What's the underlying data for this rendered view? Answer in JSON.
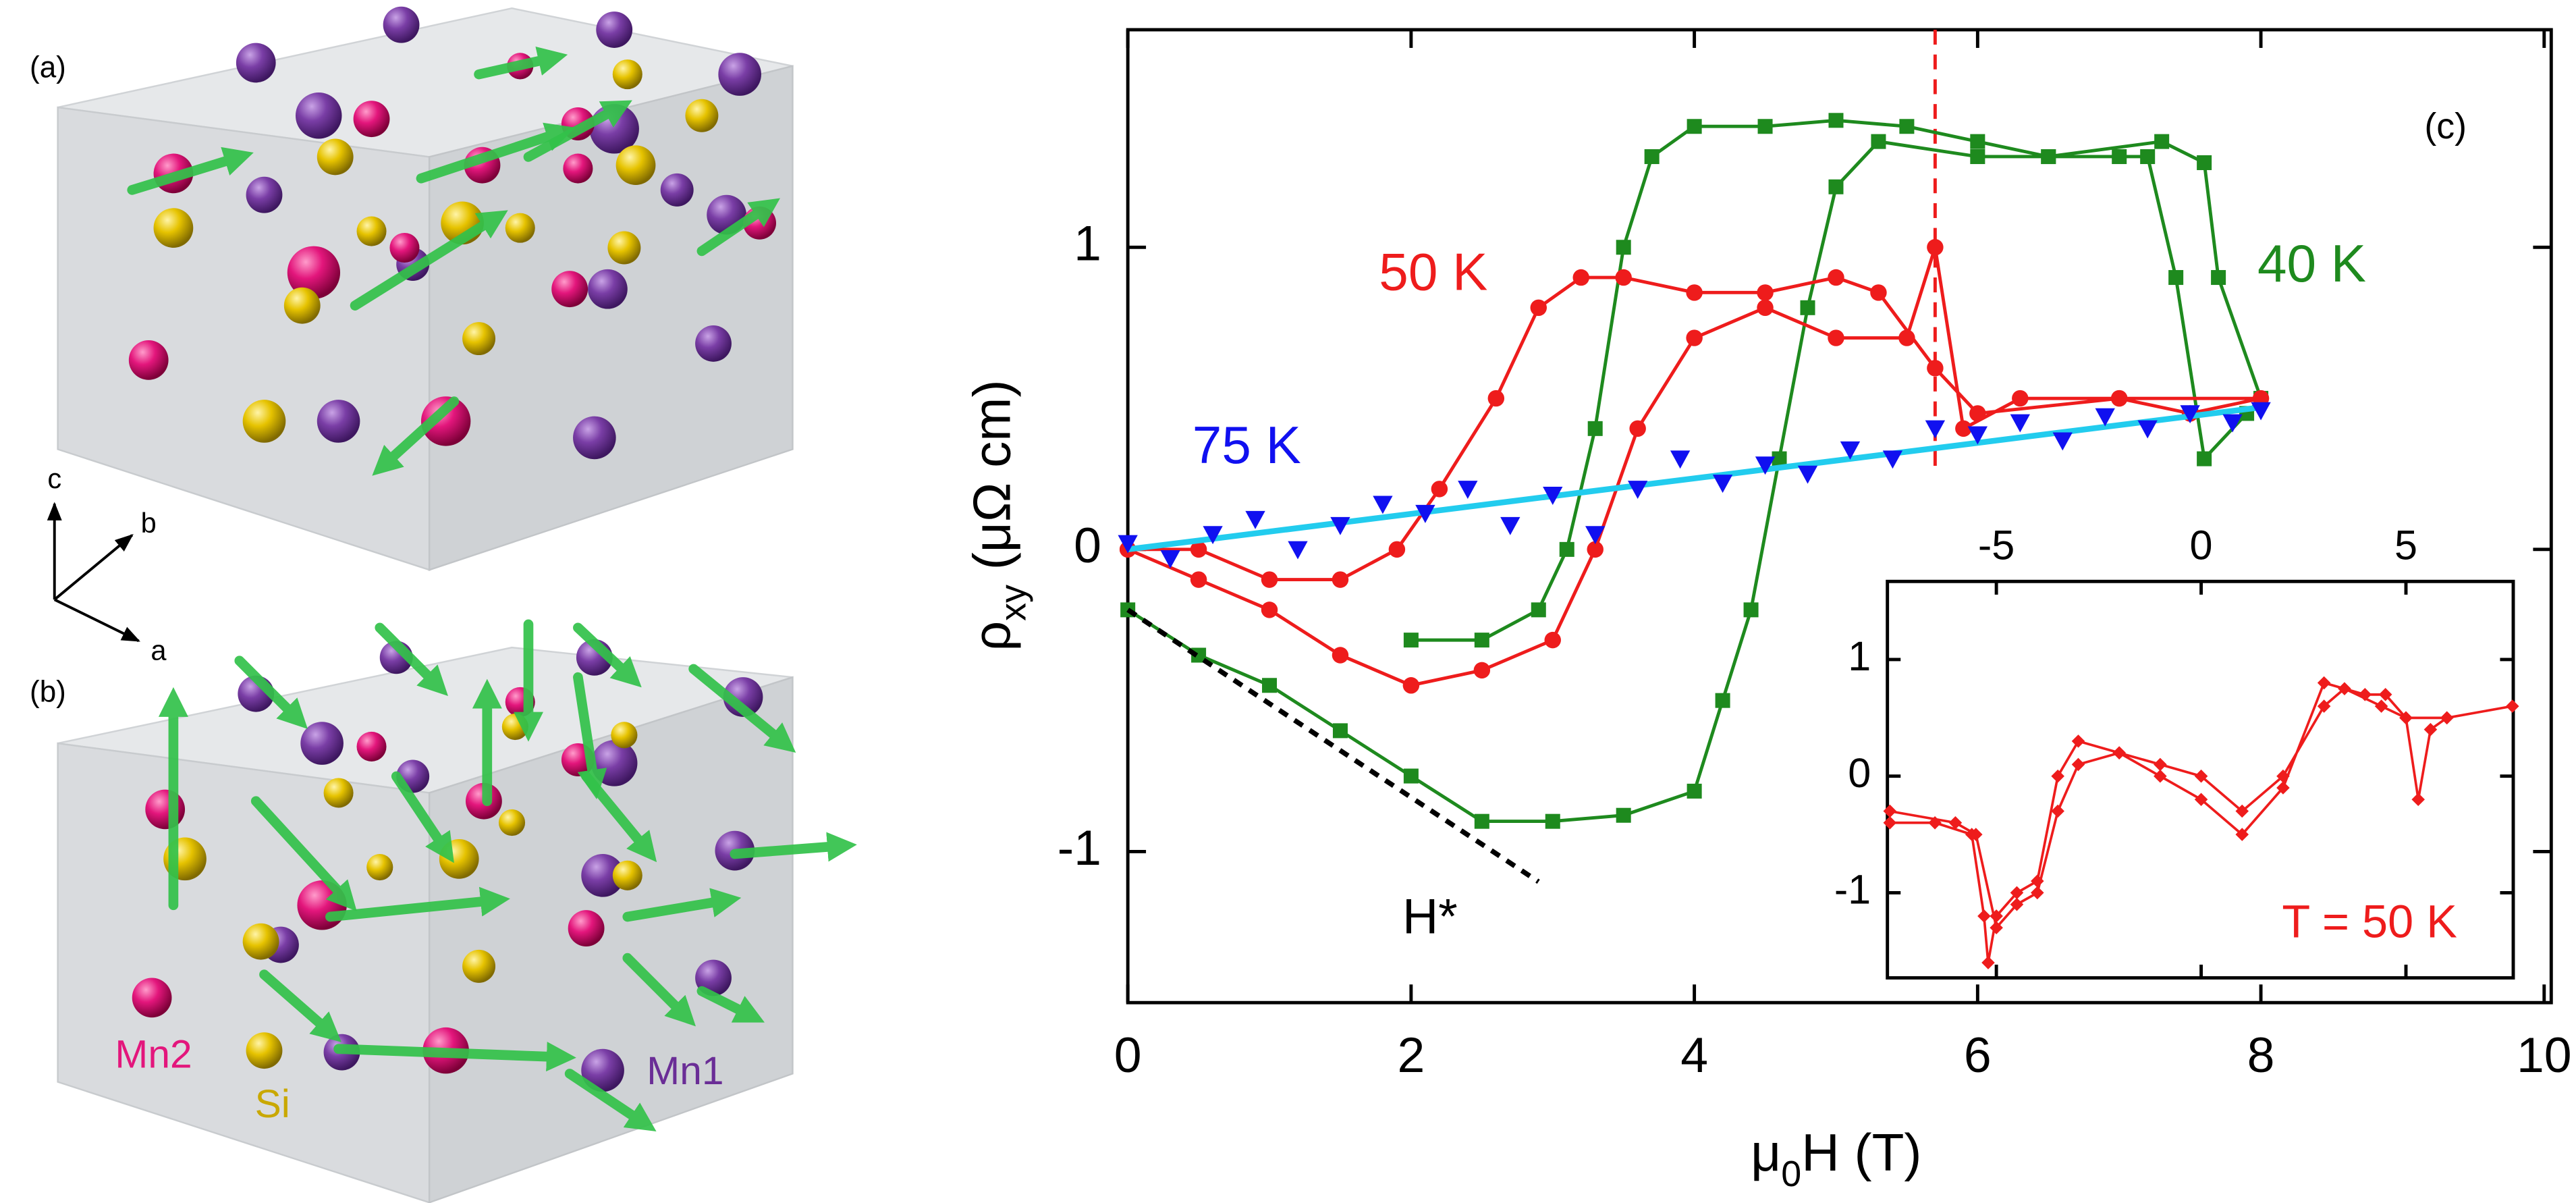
{
  "crystal": {
    "panel_a": "(a)",
    "panel_b": "(b)",
    "axes": [
      "c",
      "b",
      "a"
    ],
    "atoms": [
      "Mn2",
      "Si",
      "Mn1"
    ]
  },
  "chart_data": [
    {
      "type": "line",
      "panel": "(c)",
      "xlabel": {
        "base": "μ",
        "sub": "0",
        "rest": "H (T)"
      },
      "ylabel": {
        "base": "ρ",
        "sub": "xy",
        "rest": " (μΩ cm)"
      },
      "xlim": [
        0,
        10.05
      ],
      "ylim": [
        -1.5,
        1.72
      ],
      "xticks": [
        0,
        2,
        4,
        6,
        8,
        10
      ],
      "yticks": [
        -1,
        0,
        1
      ],
      "series": [
        {
          "name": "40 K",
          "color": "#1e8a1e",
          "marker": "square",
          "line": true,
          "x": [
            0,
            0.5,
            1,
            1.5,
            2,
            2.5,
            3,
            3.5,
            4,
            4.2,
            4.4,
            4.6,
            4.8,
            5.0,
            5.3,
            6.0,
            6.5,
            7.0,
            7.2,
            7.4,
            7.6,
            7.9,
            8.0,
            7.7,
            7.6,
            7.3,
            6.5,
            6,
            5.5,
            5,
            4.5,
            4,
            3.7,
            3.5,
            3.3,
            3.1,
            2.9,
            2.5,
            2.0
          ],
          "values": [
            -0.2,
            -0.35,
            -0.45,
            -0.6,
            -0.75,
            -0.9,
            -0.9,
            -0.88,
            -0.8,
            -0.5,
            -0.2,
            0.3,
            0.8,
            1.2,
            1.35,
            1.3,
            1.3,
            1.3,
            1.3,
            0.9,
            0.3,
            0.45,
            0.5,
            0.9,
            1.28,
            1.35,
            1.3,
            1.35,
            1.4,
            1.42,
            1.4,
            1.4,
            1.3,
            1.0,
            0.4,
            0.0,
            -0.2,
            -0.3,
            -0.3
          ]
        },
        {
          "name": "50 K",
          "color": "#ee1c1c",
          "marker": "circle",
          "line": true,
          "x": [
            0,
            0.5,
            1,
            1.5,
            2,
            2.5,
            3,
            3.3,
            3.6,
            4,
            4.5,
            5,
            5.5,
            5.7,
            5.9,
            6.3,
            7,
            7.5,
            8,
            7,
            6,
            5.7,
            5.3,
            5,
            4.5,
            4,
            3.5,
            3.2,
            2.9,
            2.6,
            2.2,
            1.9,
            1.5,
            1,
            0.5,
            0
          ],
          "values": [
            0,
            -0.1,
            -0.2,
            -0.35,
            -0.45,
            -0.4,
            -0.3,
            0.0,
            0.4,
            0.7,
            0.8,
            0.7,
            0.7,
            1.0,
            0.4,
            0.5,
            0.5,
            0.45,
            0.5,
            0.5,
            0.45,
            0.6,
            0.85,
            0.9,
            0.85,
            0.85,
            0.9,
            0.9,
            0.8,
            0.5,
            0.2,
            0.0,
            -0.1,
            -0.1,
            0.0,
            0.0
          ]
        },
        {
          "name": "75 K",
          "color": "#1010f0",
          "marker": "triangle",
          "line": false,
          "x": [
            0,
            0.3,
            0.6,
            0.9,
            1.2,
            1.5,
            1.8,
            2.1,
            2.4,
            2.7,
            3.0,
            3.3,
            3.6,
            3.9,
            4.2,
            4.5,
            4.8,
            5.1,
            5.4,
            5.7,
            6.0,
            6.3,
            6.6,
            6.9,
            7.2,
            7.5,
            7.8,
            8.0
          ],
          "values": [
            0.02,
            -0.03,
            0.05,
            0.1,
            0.0,
            0.08,
            0.15,
            0.12,
            0.2,
            0.08,
            0.18,
            0.05,
            0.2,
            0.3,
            0.22,
            0.28,
            0.25,
            0.33,
            0.3,
            0.4,
            0.38,
            0.42,
            0.36,
            0.44,
            0.4,
            0.45,
            0.42,
            0.46
          ]
        }
      ],
      "fit": {
        "color": "#22ccee",
        "x": [
          0,
          8
        ],
        "values": [
          0,
          0.47
        ]
      },
      "extrapolation": {
        "color": "#000000",
        "x": [
          0,
          2.9
        ],
        "values": [
          -0.2,
          -1.1
        ]
      },
      "marker_x": 5.7,
      "annotation": "H*"
    },
    {
      "type": "line",
      "xlim": [
        -7.66,
        7.62
      ],
      "ylim": [
        -1.73,
        1.67
      ],
      "xticks": [
        -5,
        0,
        5
      ],
      "yticks": [
        -1,
        0,
        1
      ],
      "series": [
        {
          "name": "T = 50 K",
          "color": "#ee1c1c",
          "x": [
            -7.6,
            -6.5,
            -5.6,
            -5.3,
            -5.2,
            -5.0,
            -4.5,
            -4.0,
            -3.5,
            -3.0,
            -2,
            -1,
            0,
            1,
            2,
            3,
            4,
            4.5,
            5.0,
            5.3,
            5.6,
            6,
            7.6,
            6,
            5,
            4.4,
            3.5,
            3,
            2,
            1,
            0,
            -1,
            -2,
            -3,
            -3.5,
            -4,
            -4.5,
            -5,
            -5.5,
            -6,
            -7.6
          ],
          "values": [
            -0.4,
            -0.4,
            -0.5,
            -1.2,
            -1.6,
            -1.2,
            -1.0,
            -0.9,
            0.0,
            0.3,
            0.2,
            0.0,
            -0.2,
            -0.5,
            -0.1,
            0.8,
            0.7,
            0.7,
            0.5,
            -0.2,
            0.4,
            0.5,
            0.6,
            0.5,
            0.5,
            0.6,
            0.75,
            0.6,
            0.0,
            -0.3,
            0.0,
            0.1,
            0.2,
            0.1,
            -0.3,
            -1.0,
            -1.1,
            -1.3,
            -0.5,
            -0.4,
            -0.3
          ]
        }
      ]
    }
  ]
}
